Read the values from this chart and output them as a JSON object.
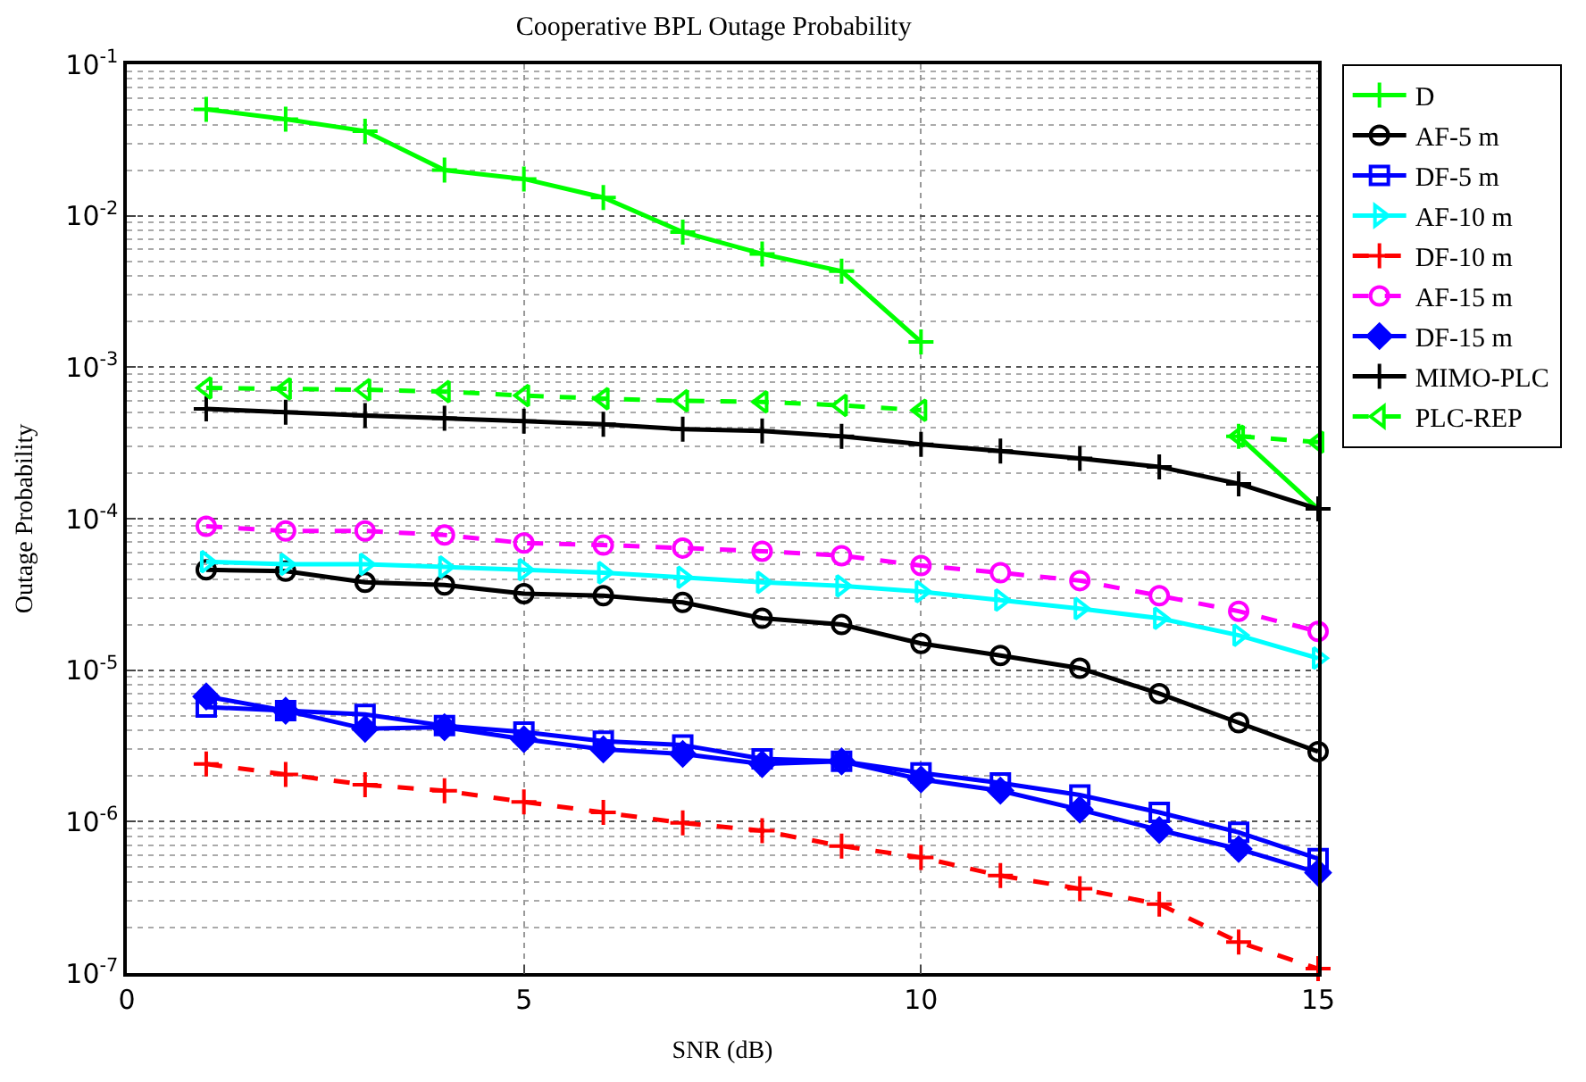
{
  "chart_data": {
    "type": "line",
    "title": "Cooperative BPL Outage Probability",
    "xlabel": "SNR (dB)",
    "ylabel": "Outage Probability",
    "x": [
      1,
      2,
      3,
      4,
      5,
      6,
      7,
      8,
      9,
      10,
      11,
      12,
      13,
      14,
      15
    ],
    "xlim": [
      0,
      15
    ],
    "xticks": [
      0,
      5,
      10,
      15
    ],
    "ylim": [
      1e-07,
      0.1
    ],
    "log": true,
    "yticks": [
      {
        "value": 1e-07,
        "label": "10$^{-7}$"
      },
      {
        "value": 1e-06,
        "label": "10$^{-6}$"
      },
      {
        "value": 1e-05,
        "label": "10$^{-5}$"
      },
      {
        "value": 0.0001,
        "label": "10$^{-4}$"
      },
      {
        "value": 0.001,
        "label": "10$^{-3}$"
      },
      {
        "value": 0.01,
        "label": "10$^{-2}$"
      },
      {
        "value": 0.1,
        "label": "10$^{-1}$"
      }
    ],
    "grid": true,
    "legend": "top right",
    "series": [
      {
        "name": "D",
        "color": "#00ff00",
        "marker": "cross",
        "line_style": "solid",
        "values": [
          0.0504,
          0.0434,
          0.0362,
          0.02,
          0.0175,
          0.0132,
          0.0078,
          0.0056,
          0.0043,
          0.00147,
          null,
          null,
          null,
          0.00035,
          0.000116
        ]
      },
      {
        "name": "AF-5 m",
        "color": "#000000",
        "marker": "circle",
        "line_style": "solid",
        "values": [
          4.6e-05,
          4.5e-05,
          3.8e-05,
          3.65e-05,
          3.2e-05,
          3.1e-05,
          2.8e-05,
          2.2e-05,
          2e-05,
          1.5e-05,
          1.25e-05,
          1.03e-05,
          7e-06,
          4.5e-06,
          2.9e-06
        ]
      },
      {
        "name": "DF-5 m",
        "color": "#0000ff",
        "marker": "square",
        "line_style": "solid",
        "values": [
          5.7e-06,
          5.4e-06,
          5.1e-06,
          4.3e-06,
          3.9e-06,
          3.4e-06,
          3.2e-06,
          2.6e-06,
          2.5e-06,
          2.1e-06,
          1.8e-06,
          1.5e-06,
          1.15e-06,
          8.5e-07,
          5.7e-07
        ]
      },
      {
        "name": "AF-10 m",
        "color": "#00ffff",
        "marker": "triangle-right",
        "line_style": "solid",
        "values": [
          5.2e-05,
          5e-05,
          5e-05,
          4.8e-05,
          4.6e-05,
          4.4e-05,
          4.1e-05,
          3.8e-05,
          3.6e-05,
          3.3e-05,
          2.9e-05,
          2.55e-05,
          2.2e-05,
          1.7e-05,
          1.2e-05
        ]
      },
      {
        "name": "DF-10 m",
        "color": "#ff0000",
        "marker": "cross",
        "line_style": "dashed",
        "values": [
          2.4e-06,
          2.05e-06,
          1.75e-06,
          1.6e-06,
          1.35e-06,
          1.15e-06,
          9.8e-07,
          8.7e-07,
          6.9e-07,
          5.8e-07,
          4.4e-07,
          3.6e-07,
          2.85e-07,
          1.6e-07,
          1.07e-07
        ]
      },
      {
        "name": "AF-15 m",
        "color": "#ff00ff",
        "marker": "circle",
        "line_style": "dashed",
        "values": [
          8.9e-05,
          8.3e-05,
          8.3e-05,
          7.8e-05,
          6.9e-05,
          6.7e-05,
          6.4e-05,
          6.1e-05,
          5.7e-05,
          4.9e-05,
          4.4e-05,
          3.9e-05,
          3.1e-05,
          2.45e-05,
          1.8e-05
        ]
      },
      {
        "name": "DF-15 m",
        "color": "#0000ff",
        "marker": "diamond",
        "line_style": "solid",
        "values": [
          6.7e-06,
          5.4e-06,
          4.1e-06,
          4.2e-06,
          3.5e-06,
          3e-06,
          2.8e-06,
          2.4e-06,
          2.5e-06,
          1.9e-06,
          1.6e-06,
          1.2e-06,
          8.8e-07,
          6.6e-07,
          4.6e-07
        ]
      },
      {
        "name": "MIMO-PLC",
        "color": "#000000",
        "marker": "cross",
        "line_style": "solid",
        "values": [
          0.00053,
          0.000505,
          0.00048,
          0.00046,
          0.00044,
          0.00042,
          0.00039,
          0.00038,
          0.00035,
          0.00031,
          0.00028,
          0.00025,
          0.00022,
          0.00017,
          0.000116
        ]
      },
      {
        "name": "PLC-REP",
        "color": "#00ff00",
        "marker": "triangle-left",
        "line_style": "dashed",
        "values": [
          0.00073,
          0.00072,
          0.00071,
          0.00069,
          0.00065,
          0.00062,
          0.0006,
          0.00059,
          0.00056,
          0.00052,
          null,
          null,
          null,
          0.00035,
          0.00032
        ]
      }
    ]
  }
}
